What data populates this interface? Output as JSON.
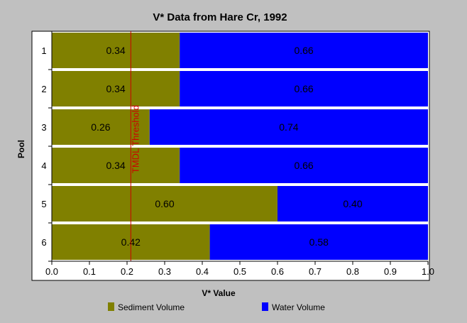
{
  "chart_data": {
    "type": "bar",
    "orientation": "horizontal",
    "stacked": true,
    "title": "V* Data from Hare Cr, 1992",
    "xlabel": "V* Value",
    "ylabel": "Pool",
    "categories": [
      "1",
      "2",
      "3",
      "4",
      "5",
      "6"
    ],
    "series": [
      {
        "name": "Sediment Volume",
        "values": [
          0.34,
          0.34,
          0.26,
          0.34,
          0.6,
          0.42
        ],
        "labels": [
          "0.34",
          "0.34",
          "0.26",
          "0.34",
          "0.60",
          "0.42"
        ],
        "color": "#808000"
      },
      {
        "name": "Water Volume",
        "values": [
          0.66,
          0.66,
          0.74,
          0.66,
          0.4,
          0.58
        ],
        "labels": [
          "0.66",
          "0.66",
          "0.74",
          "0.66",
          "0.40",
          "0.58"
        ],
        "color": "#0000ff"
      }
    ],
    "xlim": [
      0,
      1
    ],
    "xticks": [
      "0.0",
      "0.1",
      "0.2",
      "0.3",
      "0.4",
      "0.5",
      "0.6",
      "0.7",
      "0.8",
      "0.9",
      "1.0"
    ],
    "threshold": {
      "value": 0.21,
      "label": "TMDL Threshold",
      "color": "#cc0000"
    },
    "background": "#c0c0c0",
    "plot_background": "#ffffff",
    "grid": false,
    "legend_position": "bottom"
  }
}
